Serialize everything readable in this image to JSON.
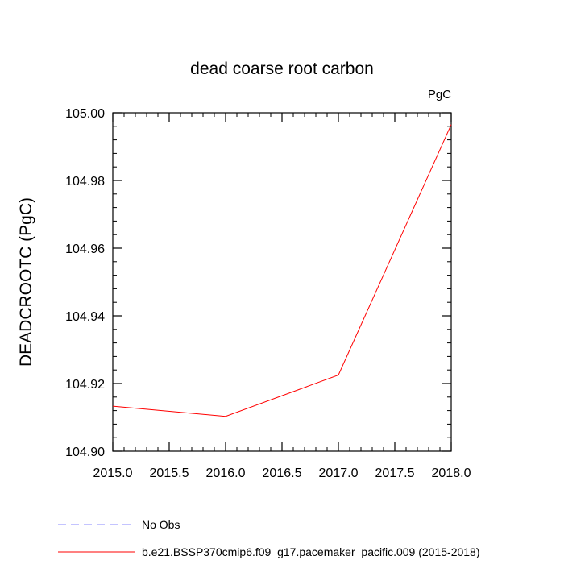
{
  "chart_data": {
    "type": "line",
    "title": "dead coarse root carbon",
    "units_label": "PgC",
    "xlabel": "",
    "ylabel": "DEADCROOTC  (PgC)",
    "xlim": [
      2015.0,
      2018.0
    ],
    "ylim": [
      104.9,
      105.0
    ],
    "x_ticks": [
      2015.0,
      2015.5,
      2016.0,
      2016.5,
      2017.0,
      2017.5,
      2018.0
    ],
    "x_tick_labels": [
      "2015.0",
      "2015.5",
      "2016.0",
      "2016.5",
      "2017.0",
      "2017.5",
      "2018.0"
    ],
    "y_ticks": [
      104.9,
      104.92,
      104.94,
      104.96,
      104.98,
      105.0
    ],
    "y_tick_labels": [
      "104.90",
      "104.92",
      "104.94",
      "104.96",
      "104.98",
      "105.00"
    ],
    "grid": false,
    "legend_position": "bottom",
    "series": [
      {
        "name": "b.e21.BSSP370cmip6.f09_g17.pacemaker_pacific.009 (2015-2018)",
        "color": "#ff0000",
        "dash": "solid",
        "x": [
          2015.0,
          2016.0,
          2017.0,
          2018.0
        ],
        "values": [
          104.9133,
          104.9103,
          104.9225,
          104.9965
        ]
      },
      {
        "name": "No Obs",
        "color": "#8888ff",
        "dash": "dashed",
        "x": [],
        "values": []
      }
    ]
  }
}
